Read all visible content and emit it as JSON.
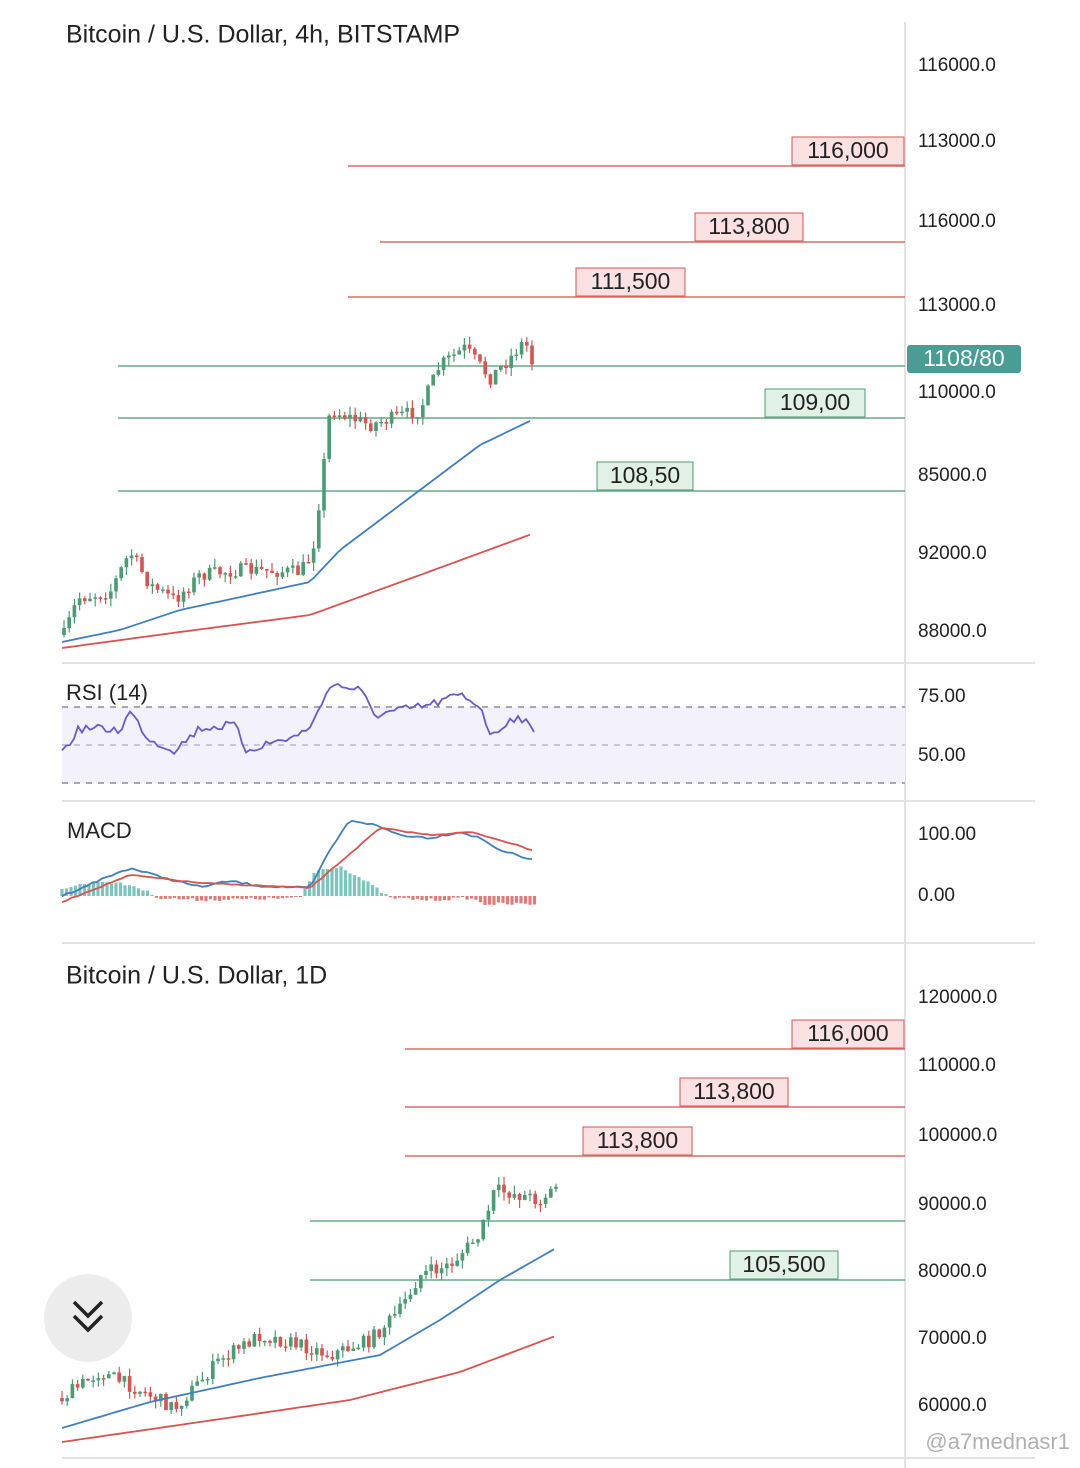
{
  "panels": [
    {
      "title": "Bitcoin / U.S. Dollar, 4h, BITSTAMP",
      "axis_labels": [
        "116000.0",
        "113000.0",
        "116000.0",
        "113000.0",
        "110000.0",
        "85000.0",
        "92000.0",
        "88000.0"
      ],
      "levels": [
        "116,000",
        "113,800",
        "111,500",
        "109,00",
        "108,50"
      ],
      "price_tag": "1108/80"
    },
    {
      "name": "RSI (14)",
      "axis_labels": [
        "75.00",
        "50.00"
      ]
    },
    {
      "name": "MACD",
      "axis_labels": [
        "100.00",
        "0.00"
      ]
    },
    {
      "title": "Bitcoin / U.S. Dollar, 1D",
      "axis_labels": [
        "120000.0",
        "110000.0",
        "100000.0",
        "90000.0",
        "80000.0",
        "70000.0",
        "60000.0"
      ],
      "levels": [
        "116,000",
        "113,800",
        "113,800",
        "105,500"
      ]
    }
  ],
  "watermark": "@a7mednasr1"
}
